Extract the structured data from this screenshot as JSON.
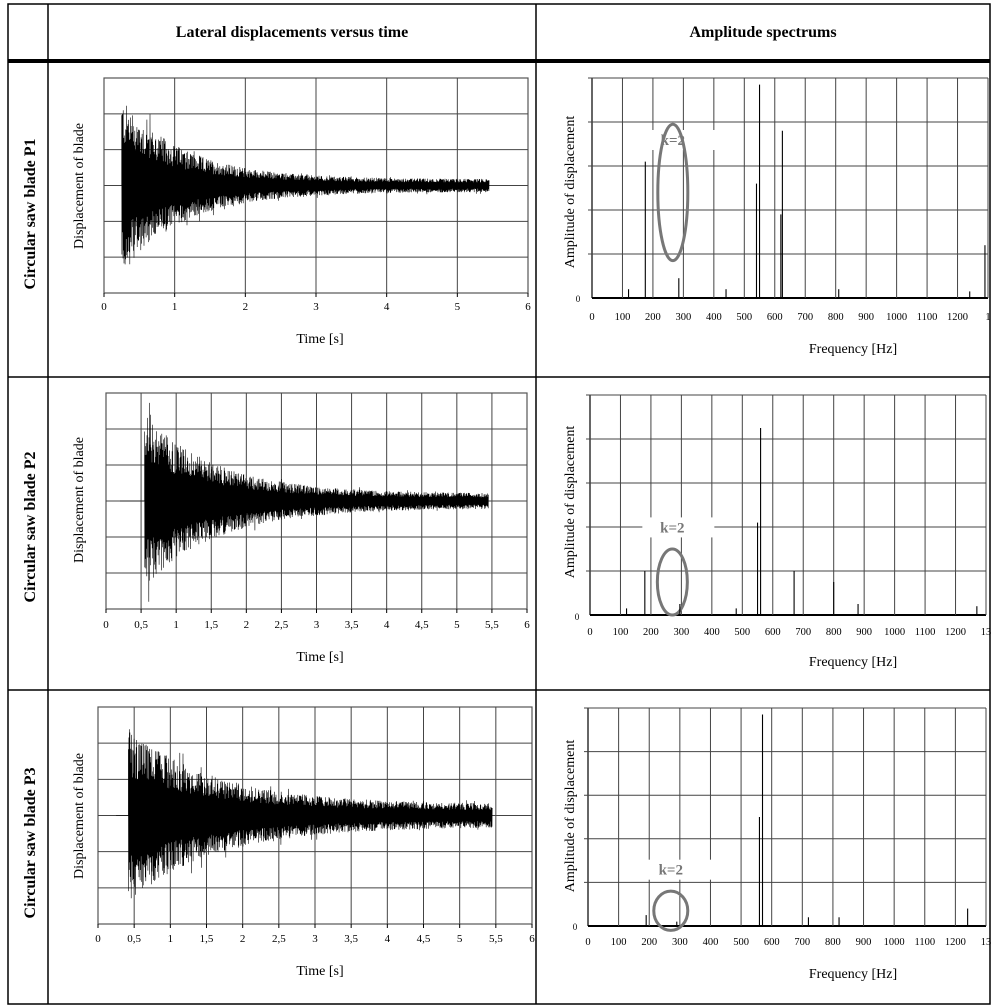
{
  "header": {
    "col1": "Lateral displacements versus time",
    "col2": "Amplitude spectrums"
  },
  "time_axis": {
    "ylabel": "Displacement of blade",
    "xlabel": "Time [s]"
  },
  "freq_axis": {
    "ylabel": "Amplitude of displacement",
    "xlabel": "Frequency [Hz]"
  },
  "chart_data": [
    {
      "type": "line",
      "row_label": "Circular saw blade P1",
      "title": "",
      "xlabel": "Time [s]",
      "ylabel": "Displacement of blade",
      "xlim": [
        0,
        6
      ],
      "x_ticks": [
        "0",
        "1",
        "2",
        "3",
        "4",
        "5",
        "6"
      ],
      "signal": {
        "start": 0.25,
        "end": 5.45,
        "initial_amplitude": 0.95,
        "final_amplitude": 0.07,
        "decay_rate": 0.8,
        "pre_level": 0.0
      },
      "ylim": [
        -1,
        1
      ]
    },
    {
      "type": "bar",
      "row_label": "Circular saw blade P1",
      "title": "",
      "xlabel": "Frequency [Hz]",
      "ylabel": "Amplitude of displacement",
      "xlim": [
        0,
        1300
      ],
      "x_ticks": [
        "0",
        "100",
        "200",
        "300",
        "400",
        "500",
        "600",
        "700",
        "800",
        "900",
        "1000",
        "1100",
        "1200",
        "1"
      ],
      "y_ticks": [
        "0"
      ],
      "peaks": [
        {
          "x": 120,
          "y": 0.04
        },
        {
          "x": 175,
          "y": 0.62
        },
        {
          "x": 285,
          "y": 0.09
        },
        {
          "x": 440,
          "y": 0.04
        },
        {
          "x": 540,
          "y": 0.52
        },
        {
          "x": 550,
          "y": 0.97
        },
        {
          "x": 620,
          "y": 0.38
        },
        {
          "x": 625,
          "y": 0.76
        },
        {
          "x": 810,
          "y": 0.04
        },
        {
          "x": 1240,
          "y": 0.03
        },
        {
          "x": 1290,
          "y": 0.24
        }
      ],
      "annotation": {
        "label": "k=2",
        "x": 285
      }
    },
    {
      "type": "line",
      "row_label": "Circular saw blade P2",
      "title": "",
      "xlabel": "Time [s]",
      "ylabel": "Displacement of blade",
      "xlim": [
        0,
        6
      ],
      "x_ticks": [
        "0",
        "0,5",
        "1",
        "1,5",
        "2",
        "2,5",
        "3",
        "3,5",
        "4",
        "4,5",
        "5",
        "5,5",
        "6"
      ],
      "signal": {
        "start": 0.55,
        "end": 5.45,
        "initial_amplitude": 0.95,
        "final_amplitude": 0.08,
        "decay_rate": 0.7,
        "pre_level": 0.0,
        "pre_start": 0.2
      },
      "ylim": [
        -1,
        1
      ]
    },
    {
      "type": "bar",
      "row_label": "Circular saw blade P2",
      "title": "",
      "xlabel": "Frequency [Hz]",
      "ylabel": "Amplitude of displacement",
      "xlim": [
        0,
        1300
      ],
      "x_ticks": [
        "0",
        "100",
        "200",
        "300",
        "400",
        "500",
        "600",
        "700",
        "800",
        "900",
        "1000",
        "1100",
        "1200",
        "13"
      ],
      "y_ticks": [
        "0"
      ],
      "peaks": [
        {
          "x": 120,
          "y": 0.03
        },
        {
          "x": 180,
          "y": 0.2
        },
        {
          "x": 295,
          "y": 0.05
        },
        {
          "x": 480,
          "y": 0.03
        },
        {
          "x": 550,
          "y": 0.42
        },
        {
          "x": 560,
          "y": 0.85
        },
        {
          "x": 670,
          "y": 0.2
        },
        {
          "x": 800,
          "y": 0.15
        },
        {
          "x": 880,
          "y": 0.05
        },
        {
          "x": 1270,
          "y": 0.04
        }
      ],
      "annotation": {
        "label": "k=2",
        "x": 290
      }
    },
    {
      "type": "line",
      "row_label": "Circular saw blade P3",
      "title": "",
      "xlabel": "Time [s]",
      "ylabel": "Displacement of blade",
      "xlim": [
        0,
        6
      ],
      "x_ticks": [
        "0",
        "0,5",
        "1",
        "1,5",
        "2",
        "2,5",
        "3",
        "3,5",
        "4",
        "4,5",
        "5",
        "5,5",
        "6"
      ],
      "signal": {
        "start": 0.42,
        "end": 5.45,
        "initial_amplitude": 0.95,
        "final_amplitude": 0.12,
        "decay_rate": 0.6,
        "pre_level": 0.0,
        "pre_start": 0.25
      },
      "ylim": [
        -1,
        1
      ]
    },
    {
      "type": "bar",
      "row_label": "Circular saw blade P3",
      "title": "",
      "xlabel": "Frequency [Hz]",
      "ylabel": "Amplitude of displacement",
      "xlim": [
        0,
        1300
      ],
      "x_ticks": [
        "0",
        "100",
        "200",
        "300",
        "400",
        "500",
        "600",
        "700",
        "800",
        "900",
        "1000",
        "1100",
        "1200",
        "13"
      ],
      "y_ticks": [
        "0"
      ],
      "peaks": [
        {
          "x": 190,
          "y": 0.05
        },
        {
          "x": 290,
          "y": 0.02
        },
        {
          "x": 560,
          "y": 0.5
        },
        {
          "x": 570,
          "y": 0.97
        },
        {
          "x": 720,
          "y": 0.04
        },
        {
          "x": 820,
          "y": 0.04
        },
        {
          "x": 1240,
          "y": 0.08
        }
      ],
      "annotation": {
        "label": "k=2",
        "x": 290
      }
    }
  ]
}
